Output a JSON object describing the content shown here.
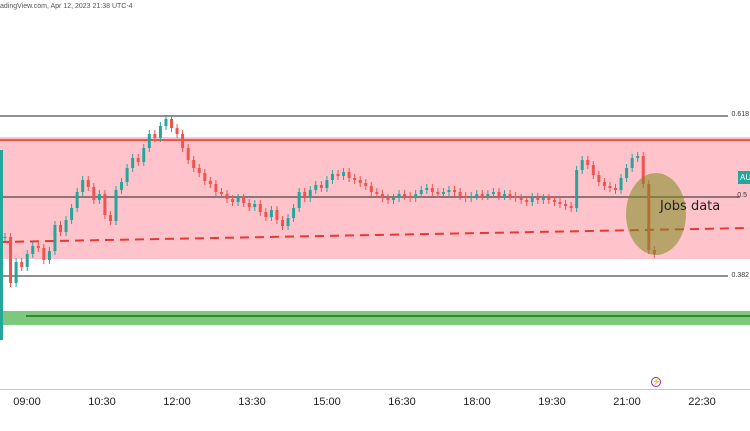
{
  "header": {
    "text": "adingView.com, Apr 12, 2023 21:38 UTC-4"
  },
  "annotation": {
    "jobs_label": "Jobs data"
  },
  "fib_levels": [
    {
      "label": "0.618"
    },
    {
      "label": "0.5"
    },
    {
      "label": "0.382"
    }
  ],
  "price_tag": {
    "label": "AU",
    "color": "#26a69a"
  },
  "event_icon": {
    "name": "lightning-icon",
    "color": "#9c27b0"
  },
  "colors": {
    "up": "#26a69a",
    "down": "#ef5350",
    "resistance_zone": "#ffc4cb",
    "support_zone": "#7ec87e",
    "support_line": "#2e8b2e",
    "trend_dash": "#e53935",
    "jobs_ellipse": "#9aaa4a"
  },
  "chart_data": {
    "type": "candlestick",
    "xaxis_ticks": [
      "09:00",
      "10:30",
      "12:00",
      "13:30",
      "15:00",
      "16:30",
      "18:00",
      "19:30",
      "21:00",
      "22:30"
    ],
    "closes": [
      193,
      147,
      168,
      163,
      176,
      184,
      182,
      170,
      179,
      205,
      198,
      210,
      222,
      238,
      250,
      243,
      230,
      236,
      215,
      209,
      240,
      248,
      262,
      272,
      268,
      282,
      296,
      292,
      304,
      311,
      302,
      296,
      282,
      270,
      262,
      257,
      249,
      246,
      238,
      236,
      231,
      228,
      232,
      227,
      223,
      226,
      218,
      213,
      220,
      210,
      204,
      212,
      222,
      238,
      232,
      240,
      245,
      242,
      250,
      256,
      254,
      258,
      252,
      250,
      247,
      244,
      238,
      236,
      232,
      230,
      232,
      236,
      234,
      232,
      236,
      240,
      242,
      238,
      236,
      238,
      240,
      238,
      234,
      232,
      234,
      236,
      234,
      236,
      238,
      234,
      236,
      234,
      232,
      230,
      228,
      233,
      230,
      232,
      230,
      228,
      226,
      224,
      222,
      260,
      270,
      265,
      255,
      248,
      244,
      242,
      240,
      252,
      262,
      272,
      274,
      246,
      180,
      176
    ]
  }
}
